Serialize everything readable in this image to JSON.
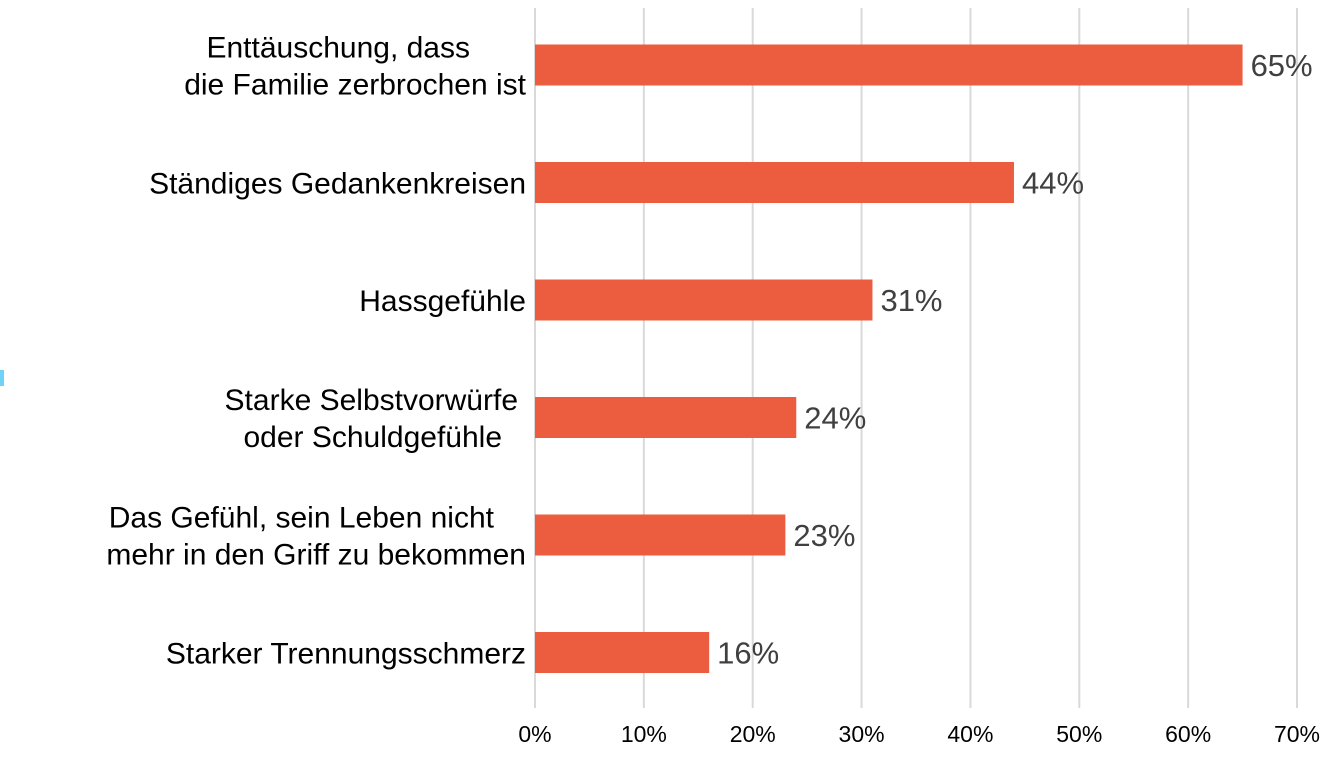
{
  "chart_data": {
    "type": "bar",
    "orientation": "horizontal",
    "categories": [
      [
        "Enttäuschung, dass",
        "die Familie zerbrochen ist"
      ],
      [
        "Ständiges Gedankenkreisen"
      ],
      [
        "Hassgefühle"
      ],
      [
        "Starke Selbstvorwürfe",
        "oder Schuldgefühle"
      ],
      [
        "Das Gefühl, sein Leben nicht",
        "mehr in den Griff zu bekommen"
      ],
      [
        "Starker Trennungsschmerz"
      ]
    ],
    "values": [
      65,
      44,
      31,
      24,
      23,
      16
    ],
    "value_labels": [
      "65%",
      "44%",
      "31%",
      "24%",
      "23%",
      "16%"
    ],
    "xlim": [
      0,
      70
    ],
    "x_ticks": [
      0,
      10,
      20,
      30,
      40,
      50,
      60,
      70
    ],
    "x_tick_labels": [
      "0%",
      "10%",
      "20%",
      "30%",
      "40%",
      "50%",
      "60%",
      "70%"
    ],
    "grid": "vertical",
    "title": "",
    "xlabel": "",
    "ylabel": "",
    "colors": {
      "bar": "#ec5c3f",
      "grid": "#d9d9d9",
      "value_label": "#404040"
    }
  }
}
